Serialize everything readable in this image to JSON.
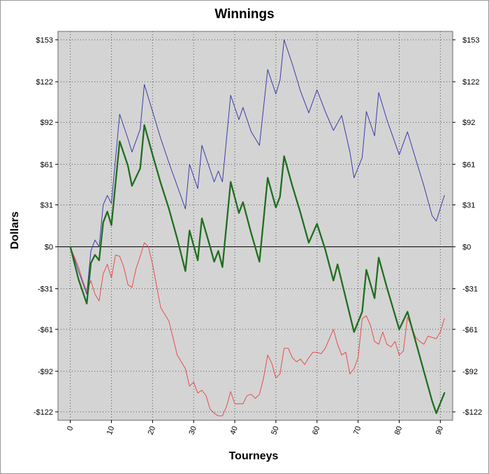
{
  "chart_data": {
    "type": "line",
    "title": "Winnings",
    "xlabel": "Tourneys",
    "ylabel": "Dollars",
    "xlim": [
      -3,
      93
    ],
    "ylim": [
      -122,
      153
    ],
    "x_ticks": [
      0,
      10,
      20,
      30,
      40,
      50,
      60,
      70,
      80,
      90
    ],
    "x_tick_labels": [
      "0",
      "10",
      "20",
      "30",
      "40",
      "50",
      "60",
      "70",
      "80",
      "90"
    ],
    "y_ticks": [
      153,
      122,
      92,
      61,
      31,
      0,
      -31,
      -61,
      -92,
      -122
    ],
    "y_tick_labels": [
      "$153",
      "$122",
      "$92",
      "$61",
      "$31",
      "$0",
      "-$31",
      "-$61",
      "-$92",
      "-$122"
    ],
    "grid": true,
    "background_color": "#d4d4d4",
    "series": [
      {
        "color": "#3b3bab",
        "width": 1,
        "x": [
          0,
          2,
          4,
          5,
          6,
          7,
          8,
          9,
          10,
          12,
          14,
          15,
          17,
          18,
          20,
          22,
          24,
          26,
          28,
          29,
          31,
          32,
          34,
          35,
          36,
          37,
          39,
          41,
          42,
          44,
          46,
          48,
          50,
          51,
          52,
          54,
          56,
          58,
          60,
          62,
          64,
          66,
          68,
          69,
          71,
          72,
          74,
          75,
          77,
          80,
          82,
          84,
          86,
          88,
          89,
          91
        ],
        "y": [
          0,
          -18,
          -35,
          -3,
          5,
          0,
          31,
          38,
          32,
          98,
          80,
          70,
          87,
          120,
          100,
          80,
          62,
          45,
          28,
          61,
          43,
          75,
          57,
          48,
          56,
          48,
          112,
          94,
          103,
          85,
          75,
          131,
          113,
          123,
          153,
          135,
          115,
          99,
          116,
          100,
          86,
          97,
          70,
          51,
          66,
          100,
          82,
          114,
          94,
          68,
          85,
          65,
          45,
          23,
          19,
          38
        ]
      },
      {
        "color": "#ec4a4a",
        "width": 1,
        "x": [
          0,
          2,
          3,
          4,
          5,
          6,
          7,
          8,
          9,
          10,
          11,
          12,
          13,
          14,
          15,
          16,
          17,
          18,
          19,
          20,
          22,
          24,
          26,
          28,
          29,
          30,
          31,
          32,
          33,
          34,
          35,
          36,
          37,
          38,
          39,
          40,
          42,
          43,
          44,
          45,
          46,
          47,
          48,
          49,
          50,
          51,
          52,
          53,
          54,
          55,
          56,
          57,
          58,
          59,
          60,
          61,
          62,
          63,
          64,
          65,
          66,
          67,
          68,
          69,
          70,
          71,
          72,
          73,
          74,
          75,
          76,
          77,
          78,
          79,
          80,
          81,
          82,
          83,
          84,
          85,
          86,
          87,
          88,
          89,
          90,
          91
        ],
        "y": [
          0,
          -15,
          -25,
          -33,
          -25,
          -35,
          -40,
          -20,
          -13,
          -23,
          -6,
          -7,
          -15,
          -28,
          -30,
          -16,
          -7,
          3,
          0,
          -13,
          -45,
          -55,
          -80,
          -90,
          -103,
          -100,
          -108,
          -106,
          -110,
          -120,
          -123,
          -125,
          -125,
          -118,
          -107,
          -116,
          -116,
          -110,
          -109,
          -112,
          -109,
          -97,
          -80,
          -86,
          -97,
          -94,
          -75,
          -75,
          -82,
          -85,
          -83,
          -87,
          -82,
          -78,
          -78,
          -79,
          -75,
          -68,
          -61,
          -72,
          -80,
          -78,
          -94,
          -90,
          -82,
          -53,
          -51,
          -58,
          -70,
          -72,
          -63,
          -72,
          -74,
          -70,
          -80,
          -77,
          -52,
          -59,
          -67,
          -70,
          -72,
          -66,
          -67,
          -68,
          -63,
          -53
        ]
      },
      {
        "color": "#1f6e1f",
        "width": 2.3,
        "x": [
          0,
          2,
          4,
          5,
          6,
          7,
          8,
          9,
          10,
          12,
          14,
          15,
          17,
          18,
          20,
          22,
          24,
          26,
          28,
          29,
          31,
          32,
          34,
          35,
          36,
          37,
          39,
          41,
          42,
          44,
          46,
          48,
          50,
          51,
          52,
          54,
          56,
          58,
          60,
          62,
          64,
          65,
          67,
          69,
          71,
          72,
          74,
          75,
          77,
          80,
          82,
          84,
          86,
          88,
          89,
          91
        ],
        "y": [
          0,
          -24,
          -42,
          -12,
          -6,
          -10,
          18,
          26,
          16,
          78,
          60,
          45,
          58,
          90,
          68,
          47,
          28,
          6,
          -18,
          12,
          -10,
          21,
          0,
          -11,
          -3,
          -15,
          48,
          25,
          33,
          10,
          -11,
          51,
          29,
          37,
          67,
          45,
          25,
          3,
          17,
          -2,
          -25,
          -13,
          -38,
          -63,
          -48,
          -17,
          -38,
          -8,
          -30,
          -61,
          -48,
          -70,
          -92,
          -114,
          -123,
          -108
        ]
      }
    ]
  }
}
